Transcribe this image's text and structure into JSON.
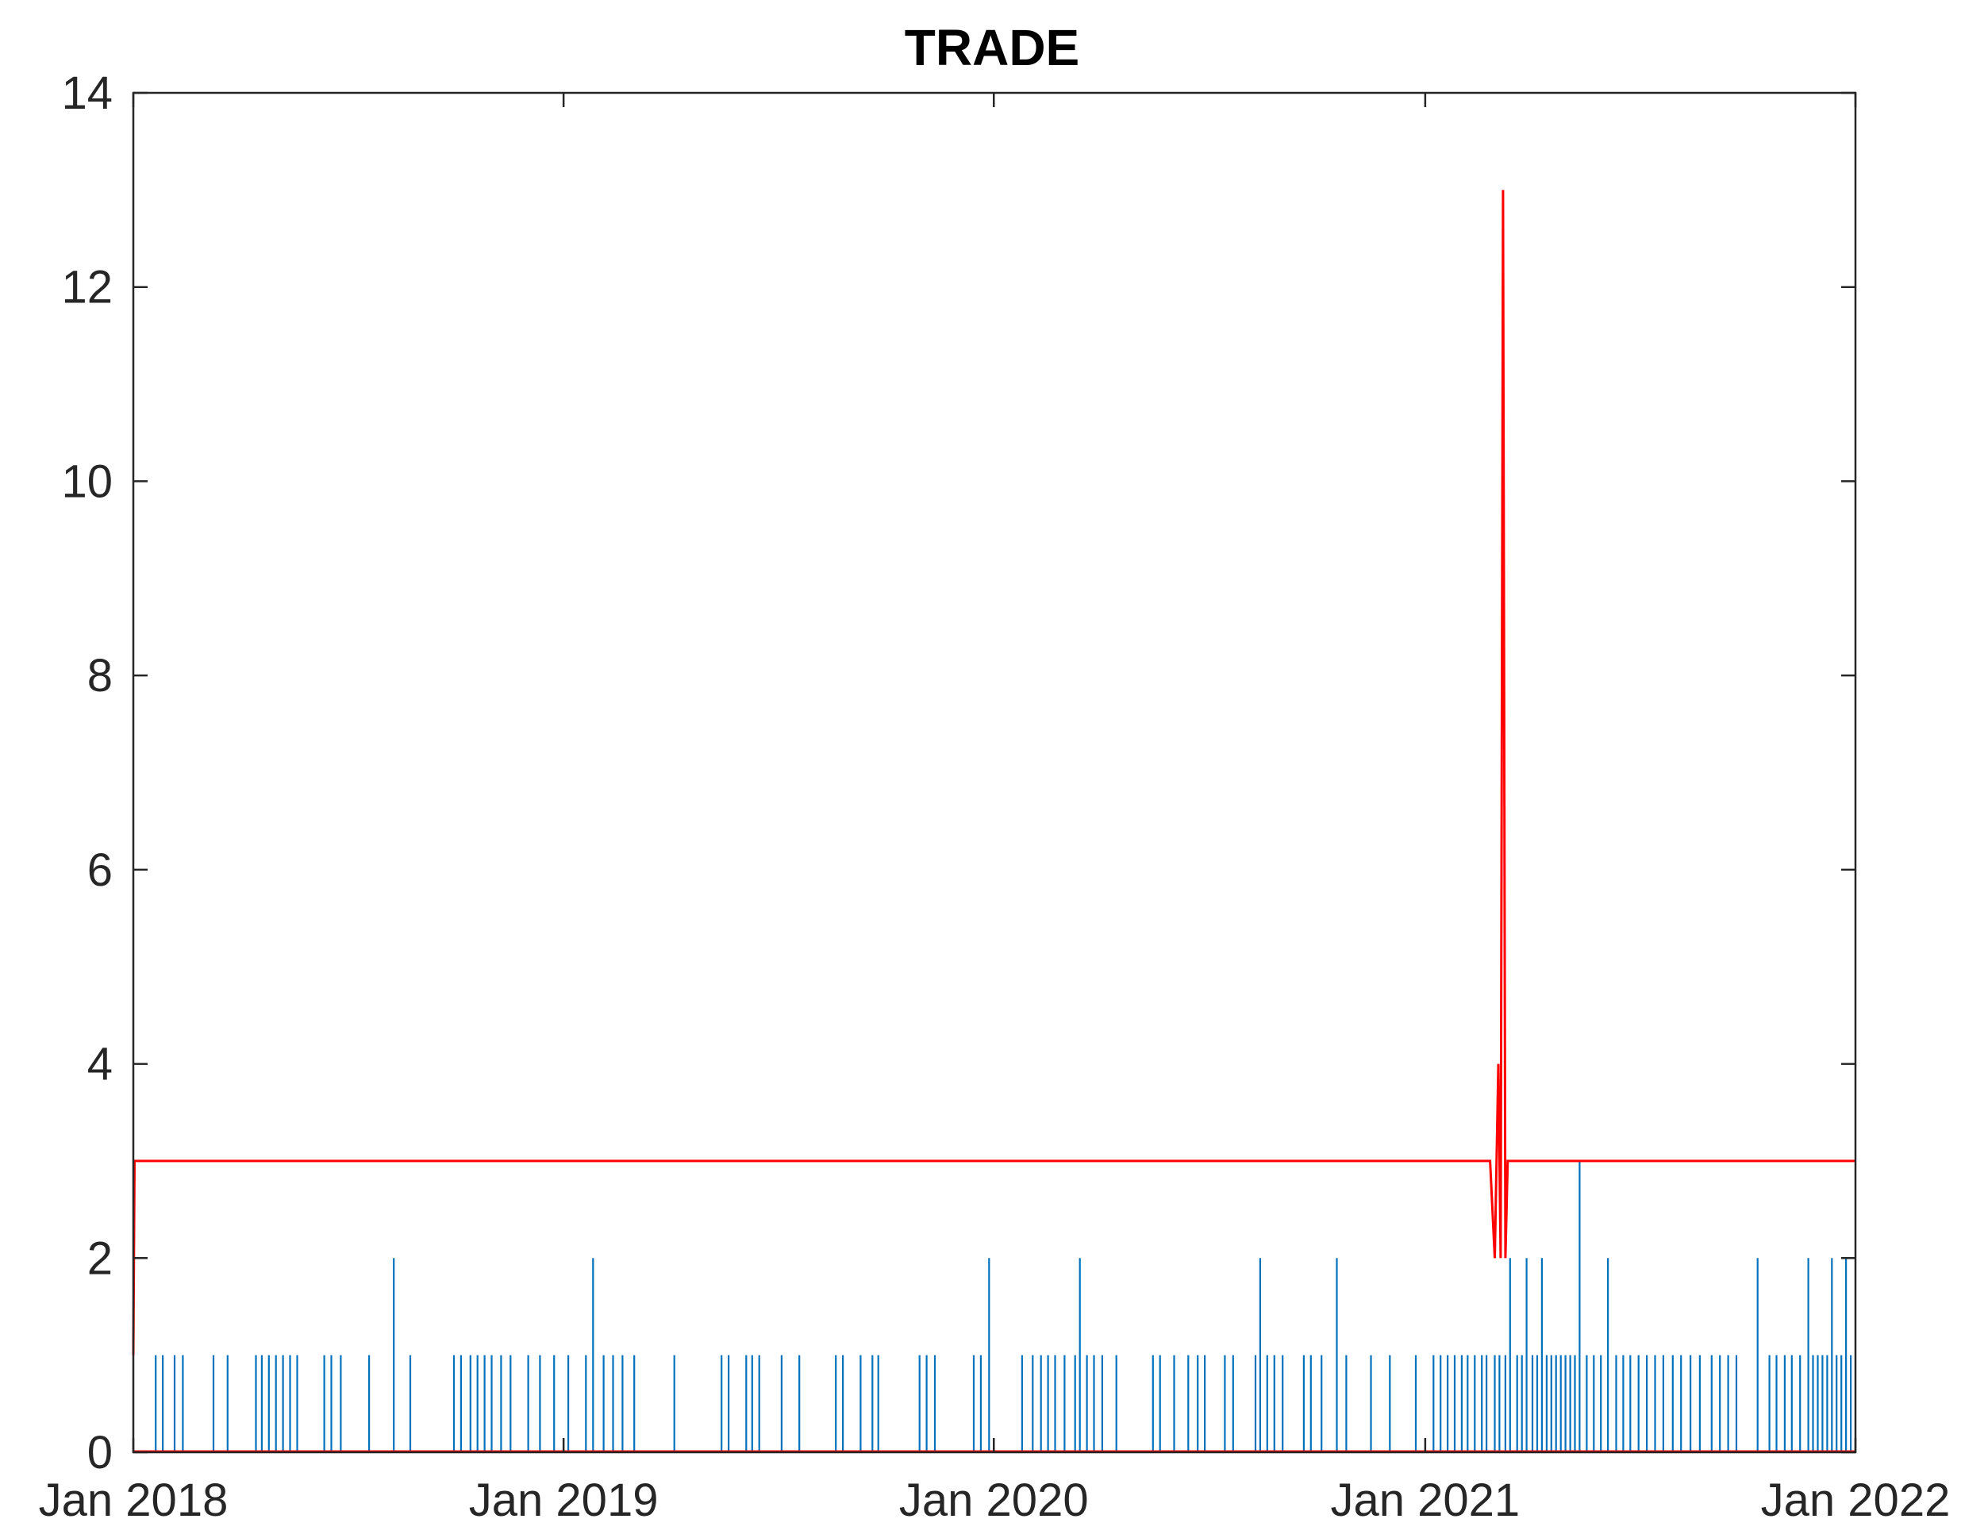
{
  "chart_data": {
    "type": "line",
    "title": "TRADE",
    "xlabel": "",
    "ylabel": "",
    "xlim": [
      "2018-01-01",
      "2022-01-01"
    ],
    "ylim": [
      0,
      14
    ],
    "yticks": [
      0,
      2,
      4,
      6,
      8,
      10,
      12,
      14
    ],
    "yticklabels": [
      "0",
      "2",
      "4",
      "6",
      "8",
      "10",
      "12",
      "14"
    ],
    "xticks": [
      "2018-01-01",
      "2019-01-01",
      "2020-01-01",
      "2021-01-01",
      "2022-01-01"
    ],
    "xticklabels": [
      "Jan 2018",
      "Jan 2019",
      "Jan 2020",
      "Jan 2021",
      "Jan 2022"
    ],
    "grid": false,
    "legend": "none",
    "colors": {
      "spikes": "#0072BD",
      "threshold": "#FF0000",
      "axes": "#262626"
    },
    "series": [
      {
        "style": "spikes",
        "color": "#0072BD",
        "points": [
          [
            "2018-01-20",
            1
          ],
          [
            "2018-01-26",
            1
          ],
          [
            "2018-02-05",
            1
          ],
          [
            "2018-02-12",
            1
          ],
          [
            "2018-03-10",
            1
          ],
          [
            "2018-03-22",
            1
          ],
          [
            "2018-04-15",
            1
          ],
          [
            "2018-04-20",
            1
          ],
          [
            "2018-04-26",
            1
          ],
          [
            "2018-05-02",
            1
          ],
          [
            "2018-05-08",
            1
          ],
          [
            "2018-05-14",
            1
          ],
          [
            "2018-05-20",
            1
          ],
          [
            "2018-06-12",
            1
          ],
          [
            "2018-06-18",
            1
          ],
          [
            "2018-06-26",
            1
          ],
          [
            "2018-07-20",
            1
          ],
          [
            "2018-08-10",
            2
          ],
          [
            "2018-08-24",
            1
          ],
          [
            "2018-09-30",
            1
          ],
          [
            "2018-10-06",
            1
          ],
          [
            "2018-10-14",
            1
          ],
          [
            "2018-10-20",
            1
          ],
          [
            "2018-10-26",
            1
          ],
          [
            "2018-11-01",
            1
          ],
          [
            "2018-11-09",
            1
          ],
          [
            "2018-11-17",
            1
          ],
          [
            "2018-12-02",
            1
          ],
          [
            "2018-12-12",
            1
          ],
          [
            "2018-12-24",
            1
          ],
          [
            "2019-01-05",
            1
          ],
          [
            "2019-01-20",
            1
          ],
          [
            "2019-01-26",
            2
          ],
          [
            "2019-02-04",
            1
          ],
          [
            "2019-02-12",
            1
          ],
          [
            "2019-02-20",
            1
          ],
          [
            "2019-03-02",
            1
          ],
          [
            "2019-04-05",
            1
          ],
          [
            "2019-05-15",
            1
          ],
          [
            "2019-05-21",
            1
          ],
          [
            "2019-06-05",
            1
          ],
          [
            "2019-06-10",
            1
          ],
          [
            "2019-06-16",
            1
          ],
          [
            "2019-07-05",
            1
          ],
          [
            "2019-07-20",
            1
          ],
          [
            "2019-08-20",
            1
          ],
          [
            "2019-08-26",
            1
          ],
          [
            "2019-09-10",
            1
          ],
          [
            "2019-09-20",
            1
          ],
          [
            "2019-09-25",
            1
          ],
          [
            "2019-10-30",
            1
          ],
          [
            "2019-11-05",
            1
          ],
          [
            "2019-11-12",
            1
          ],
          [
            "2019-12-15",
            1
          ],
          [
            "2019-12-21",
            1
          ],
          [
            "2019-12-28",
            2
          ],
          [
            "2020-01-25",
            1
          ],
          [
            "2020-02-03",
            1
          ],
          [
            "2020-02-10",
            1
          ],
          [
            "2020-02-16",
            1
          ],
          [
            "2020-02-22",
            1
          ],
          [
            "2020-03-01",
            1
          ],
          [
            "2020-03-10",
            1
          ],
          [
            "2020-03-14",
            2
          ],
          [
            "2020-03-20",
            1
          ],
          [
            "2020-03-26",
            1
          ],
          [
            "2020-04-02",
            1
          ],
          [
            "2020-04-14",
            1
          ],
          [
            "2020-05-15",
            1
          ],
          [
            "2020-05-21",
            1
          ],
          [
            "2020-06-02",
            1
          ],
          [
            "2020-06-14",
            1
          ],
          [
            "2020-06-22",
            1
          ],
          [
            "2020-06-28",
            1
          ],
          [
            "2020-07-15",
            1
          ],
          [
            "2020-07-22",
            1
          ],
          [
            "2020-08-10",
            1
          ],
          [
            "2020-08-14",
            2
          ],
          [
            "2020-08-20",
            1
          ],
          [
            "2020-08-26",
            1
          ],
          [
            "2020-09-02",
            1
          ],
          [
            "2020-09-20",
            1
          ],
          [
            "2020-09-26",
            1
          ],
          [
            "2020-10-05",
            1
          ],
          [
            "2020-10-18",
            2
          ],
          [
            "2020-10-26",
            1
          ],
          [
            "2020-11-16",
            1
          ],
          [
            "2020-12-02",
            1
          ],
          [
            "2020-12-24",
            1
          ],
          [
            "2021-01-08",
            1
          ],
          [
            "2021-01-14",
            1
          ],
          [
            "2021-01-20",
            1
          ],
          [
            "2021-01-26",
            1
          ],
          [
            "2021-02-01",
            1
          ],
          [
            "2021-02-06",
            1
          ],
          [
            "2021-02-12",
            1
          ],
          [
            "2021-02-18",
            1
          ],
          [
            "2021-02-22",
            1
          ],
          [
            "2021-03-01",
            1
          ],
          [
            "2021-03-05",
            1
          ],
          [
            "2021-03-10",
            1
          ],
          [
            "2021-03-14",
            2
          ],
          [
            "2021-03-20",
            1
          ],
          [
            "2021-03-24",
            1
          ],
          [
            "2021-03-28",
            2
          ],
          [
            "2021-04-02",
            1
          ],
          [
            "2021-04-06",
            1
          ],
          [
            "2021-04-10",
            2
          ],
          [
            "2021-04-14",
            1
          ],
          [
            "2021-04-18",
            1
          ],
          [
            "2021-04-22",
            1
          ],
          [
            "2021-04-26",
            1
          ],
          [
            "2021-04-30",
            1
          ],
          [
            "2021-05-04",
            1
          ],
          [
            "2021-05-08",
            1
          ],
          [
            "2021-05-12",
            3
          ],
          [
            "2021-05-18",
            1
          ],
          [
            "2021-05-24",
            1
          ],
          [
            "2021-05-30",
            1
          ],
          [
            "2021-06-05",
            2
          ],
          [
            "2021-06-12",
            1
          ],
          [
            "2021-06-18",
            1
          ],
          [
            "2021-06-24",
            1
          ],
          [
            "2021-07-01",
            1
          ],
          [
            "2021-07-08",
            1
          ],
          [
            "2021-07-15",
            1
          ],
          [
            "2021-07-22",
            1
          ],
          [
            "2021-07-30",
            1
          ],
          [
            "2021-08-06",
            1
          ],
          [
            "2021-08-14",
            1
          ],
          [
            "2021-08-22",
            1
          ],
          [
            "2021-09-01",
            1
          ],
          [
            "2021-09-08",
            1
          ],
          [
            "2021-09-15",
            1
          ],
          [
            "2021-09-22",
            1
          ],
          [
            "2021-10-10",
            2
          ],
          [
            "2021-10-20",
            1
          ],
          [
            "2021-10-26",
            1
          ],
          [
            "2021-11-02",
            1
          ],
          [
            "2021-11-08",
            1
          ],
          [
            "2021-11-15",
            1
          ],
          [
            "2021-11-22",
            2
          ],
          [
            "2021-11-26",
            1
          ],
          [
            "2021-11-30",
            1
          ],
          [
            "2021-12-04",
            1
          ],
          [
            "2021-12-08",
            1
          ],
          [
            "2021-12-12",
            2
          ],
          [
            "2021-12-16",
            1
          ],
          [
            "2021-12-20",
            1
          ],
          [
            "2021-12-24",
            2
          ],
          [
            "2021-12-28",
            1
          ]
        ]
      },
      {
        "style": "line",
        "color": "#FF0000",
        "points": [
          [
            "2018-01-01",
            1
          ],
          [
            "2018-01-02",
            3
          ],
          [
            "2021-02-25",
            3
          ],
          [
            "2021-03-01",
            2
          ],
          [
            "2021-03-04",
            4
          ],
          [
            "2021-03-06",
            2
          ],
          [
            "2021-03-08",
            13
          ],
          [
            "2021-03-10",
            2
          ],
          [
            "2021-03-12",
            3
          ],
          [
            "2022-01-01",
            3
          ]
        ]
      }
    ]
  }
}
